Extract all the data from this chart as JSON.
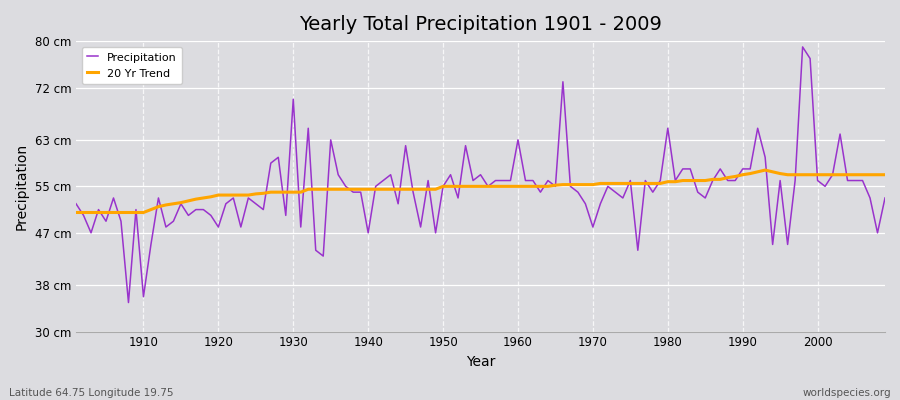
{
  "title": "Yearly Total Precipitation 1901 - 2009",
  "xlabel": "Year",
  "ylabel": "Precipitation",
  "subtitle_left": "Latitude 64.75 Longitude 19.75",
  "subtitle_right": "worldspecies.org",
  "legend_labels": [
    "Precipitation",
    "20 Yr Trend"
  ],
  "precip_color": "#9933cc",
  "trend_color": "#ffa500",
  "bg_color": "#dcdce0",
  "plot_bg_color": "#dcdce0",
  "ylim": [
    30,
    80
  ],
  "yticks": [
    30,
    38,
    47,
    55,
    63,
    72,
    80
  ],
  "ytick_labels": [
    "30 cm",
    "38 cm",
    "47 cm",
    "55 cm",
    "63 cm",
    "72 cm",
    "80 cm"
  ],
  "xlim": [
    1901,
    2009
  ],
  "xticks": [
    1910,
    1920,
    1930,
    1940,
    1950,
    1960,
    1970,
    1980,
    1990,
    2000
  ],
  "years": [
    1901,
    1902,
    1903,
    1904,
    1905,
    1906,
    1907,
    1908,
    1909,
    1910,
    1911,
    1912,
    1913,
    1914,
    1915,
    1916,
    1917,
    1918,
    1919,
    1920,
    1921,
    1922,
    1923,
    1924,
    1925,
    1926,
    1927,
    1928,
    1929,
    1930,
    1931,
    1932,
    1933,
    1934,
    1935,
    1936,
    1937,
    1938,
    1939,
    1940,
    1941,
    1942,
    1943,
    1944,
    1945,
    1946,
    1947,
    1948,
    1949,
    1950,
    1951,
    1952,
    1953,
    1954,
    1955,
    1956,
    1957,
    1958,
    1959,
    1960,
    1961,
    1962,
    1963,
    1964,
    1965,
    1966,
    1967,
    1968,
    1969,
    1970,
    1971,
    1972,
    1973,
    1974,
    1975,
    1976,
    1977,
    1978,
    1979,
    1980,
    1981,
    1982,
    1983,
    1984,
    1985,
    1986,
    1987,
    1988,
    1989,
    1990,
    1991,
    1992,
    1993,
    1994,
    1995,
    1996,
    1997,
    1998,
    1999,
    2000,
    2001,
    2002,
    2003,
    2004,
    2005,
    2006,
    2007,
    2008,
    2009
  ],
  "precip": [
    52,
    50,
    47,
    51,
    49,
    53,
    49,
    35,
    51,
    36,
    45,
    53,
    48,
    49,
    52,
    50,
    51,
    51,
    50,
    48,
    52,
    53,
    48,
    53,
    52,
    51,
    59,
    60,
    50,
    70,
    48,
    65,
    44,
    43,
    63,
    57,
    55,
    54,
    54,
    47,
    55,
    56,
    57,
    52,
    62,
    54,
    48,
    56,
    47,
    55,
    57,
    53,
    62,
    56,
    57,
    55,
    56,
    56,
    56,
    63,
    56,
    56,
    54,
    56,
    55,
    73,
    55,
    54,
    52,
    48,
    52,
    55,
    54,
    53,
    56,
    44,
    56,
    54,
    56,
    65,
    56,
    58,
    58,
    54,
    53,
    56,
    58,
    56,
    56,
    58,
    58,
    65,
    60,
    45,
    56,
    45,
    56,
    79,
    77,
    56,
    55,
    57,
    64,
    56,
    56,
    56,
    53,
    47,
    53
  ],
  "trend": [
    50.5,
    50.5,
    50.5,
    50.5,
    50.5,
    50.5,
    50.5,
    50.5,
    50.5,
    50.5,
    51.0,
    51.5,
    51.8,
    52.0,
    52.2,
    52.5,
    52.8,
    53.0,
    53.2,
    53.5,
    53.5,
    53.5,
    53.5,
    53.5,
    53.7,
    53.8,
    54.0,
    54.0,
    54.0,
    54.0,
    54.0,
    54.5,
    54.5,
    54.5,
    54.5,
    54.5,
    54.5,
    54.5,
    54.5,
    54.5,
    54.5,
    54.5,
    54.5,
    54.5,
    54.5,
    54.5,
    54.5,
    54.5,
    54.5,
    55.0,
    55.0,
    55.0,
    55.0,
    55.0,
    55.0,
    55.0,
    55.0,
    55.0,
    55.0,
    55.0,
    55.0,
    55.0,
    55.0,
    55.0,
    55.2,
    55.3,
    55.3,
    55.3,
    55.3,
    55.3,
    55.5,
    55.5,
    55.5,
    55.5,
    55.5,
    55.5,
    55.5,
    55.5,
    55.5,
    55.8,
    55.8,
    56.0,
    56.0,
    56.0,
    56.0,
    56.2,
    56.2,
    56.5,
    56.7,
    57.0,
    57.2,
    57.5,
    57.8,
    57.5,
    57.2,
    57.0,
    57.0,
    57.0,
    57.0,
    57.0,
    57.0,
    57.0,
    57.0,
    57.0,
    57.0,
    57.0,
    57.0,
    57.0,
    57.0
  ]
}
